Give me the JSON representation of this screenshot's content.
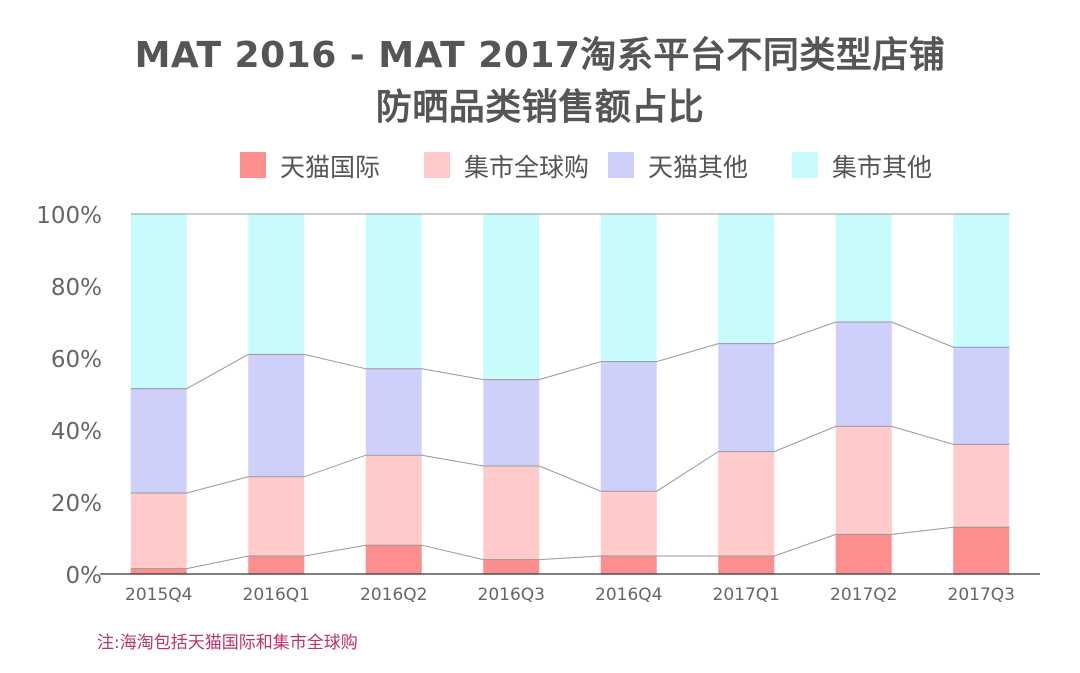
{
  "title": {
    "line1": "MAT 2016 - MAT 2017淘系平台不同类型店铺",
    "line2": "防晒品类销售额占比"
  },
  "note": "注:海淘包括天猫国际和集市全球购",
  "colors": {
    "tmall_intl": "#fd8e8e",
    "jishi_global": "#fecaca",
    "tmall_other": "#cfcffb",
    "jishi_other": "#c8fbfb",
    "axis": "#333333",
    "connector": "#999999",
    "tick_text": "#666666"
  },
  "chart_data": {
    "type": "bar",
    "stacked": true,
    "percent": true,
    "title": "MAT 2016 - MAT 2017淘系平台不同类型店铺防晒品类销售额占比",
    "xlabel": "",
    "ylabel": "",
    "ylim": [
      0,
      100
    ],
    "y_ticks": [
      "0%",
      "20%",
      "40%",
      "60%",
      "80%",
      "100%"
    ],
    "categories": [
      "2015Q4",
      "2016Q1",
      "2016Q2",
      "2016Q3",
      "2016Q4",
      "2017Q1",
      "2017Q2",
      "2017Q3"
    ],
    "legend_position": "top",
    "series": [
      {
        "name": "天猫国际",
        "color_key": "tmall_intl",
        "values": [
          1.5,
          5,
          8,
          4,
          5,
          5,
          11,
          13
        ]
      },
      {
        "name": "集市全球购",
        "color_key": "jishi_global",
        "values": [
          21,
          22,
          25,
          26,
          18,
          29,
          30,
          23
        ]
      },
      {
        "name": "天猫其他",
        "color_key": "tmall_other",
        "values": [
          29,
          34,
          24,
          24,
          36,
          30,
          29,
          27
        ]
      },
      {
        "name": "集市其他",
        "color_key": "jishi_other",
        "values": [
          48.5,
          39,
          43,
          46,
          41,
          36,
          30,
          37
        ]
      }
    ]
  }
}
